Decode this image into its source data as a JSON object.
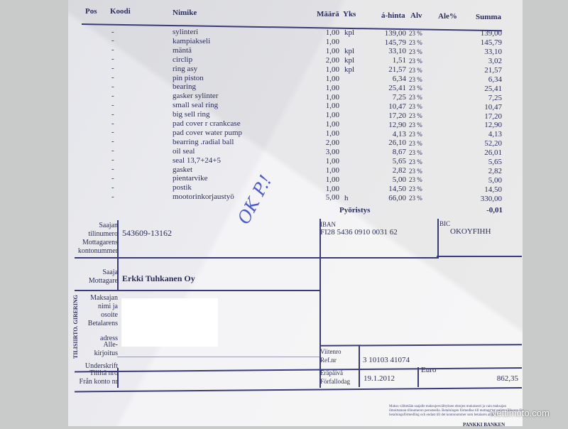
{
  "columns": {
    "pos": "Pos",
    "koodi": "Koodi",
    "nimike": "Nimike",
    "maara": "Määrä",
    "yks": "Yks",
    "ahinta": "á-hinta",
    "alv": "Alv",
    "ale": "Ale%",
    "summa": "Summa"
  },
  "rows": [
    {
      "code": "-",
      "name": "sylinteri",
      "qty": "1,00",
      "unit": "kpl",
      "price": "139,00",
      "vat": "23 %",
      "sum": "139,00"
    },
    {
      "code": "-",
      "name": "kampiakseli",
      "qty": "1,00",
      "unit": "",
      "price": "145,79",
      "vat": "23 %",
      "sum": "145,79"
    },
    {
      "code": "-",
      "name": "mäntä",
      "qty": "1,00",
      "unit": "kpl",
      "price": "33,10",
      "vat": "23 %",
      "sum": "33,10"
    },
    {
      "code": "-",
      "name": "circlip",
      "qty": "2,00",
      "unit": "kpl",
      "price": "1,51",
      "vat": "23 %",
      "sum": "3,02"
    },
    {
      "code": "-",
      "name": "ring asy",
      "qty": "1,00",
      "unit": "kpl",
      "price": "21,57",
      "vat": "23 %",
      "sum": "21,57"
    },
    {
      "code": "-",
      "name": "pin piston",
      "qty": "1,00",
      "unit": "",
      "price": "6,34",
      "vat": "23 %",
      "sum": "6,34"
    },
    {
      "code": "-",
      "name": "bearing",
      "qty": "1,00",
      "unit": "",
      "price": "25,41",
      "vat": "23 %",
      "sum": "25,41"
    },
    {
      "code": "-",
      "name": "gasker sylinter",
      "qty": "1,00",
      "unit": "",
      "price": "7,25",
      "vat": "23 %",
      "sum": "7,25"
    },
    {
      "code": "-",
      "name": "small seal ring",
      "qty": "1,00",
      "unit": "",
      "price": "10,47",
      "vat": "23 %",
      "sum": "10,47"
    },
    {
      "code": "-",
      "name": "big sell ring",
      "qty": "1,00",
      "unit": "",
      "price": "17,20",
      "vat": "23 %",
      "sum": "17,20"
    },
    {
      "code": "-",
      "name": "pad cover r crankcase",
      "qty": "1,00",
      "unit": "",
      "price": "12,90",
      "vat": "23 %",
      "sum": "12,90"
    },
    {
      "code": "-",
      "name": "pad cover water pump",
      "qty": "1,00",
      "unit": "",
      "price": "4,13",
      "vat": "23 %",
      "sum": "4,13"
    },
    {
      "code": "-",
      "name": "bearring .radial ball",
      "qty": "2,00",
      "unit": "",
      "price": "26,10",
      "vat": "23 %",
      "sum": "52,20"
    },
    {
      "code": "-",
      "name": "oil seal",
      "qty": "3,00",
      "unit": "",
      "price": "8,67",
      "vat": "23 %",
      "sum": "26,01"
    },
    {
      "code": "-",
      "name": "seal 13,7+24+5",
      "qty": "1,00",
      "unit": "",
      "price": "5,65",
      "vat": "23 %",
      "sum": "5,65"
    },
    {
      "code": "-",
      "name": "gasket",
      "qty": "1,00",
      "unit": "",
      "price": "2,82",
      "vat": "23 %",
      "sum": "2,82"
    },
    {
      "code": "-",
      "name": "pientarvike",
      "qty": "1,00",
      "unit": "",
      "price": "5,00",
      "vat": "23 %",
      "sum": "5,00"
    },
    {
      "code": "-",
      "name": "postik",
      "qty": "1,00",
      "unit": "",
      "price": "14,50",
      "vat": "23 %",
      "sum": "14,50"
    },
    {
      "code": "-",
      "name": "mootorinkorjaustyö",
      "qty": "5,00",
      "unit": "h",
      "price": "66,00",
      "vat": "23 %",
      "sum": "330,00"
    }
  ],
  "rounding": {
    "label": "Pyöristys",
    "value": "-0,01"
  },
  "handwriting": "OK P.!",
  "giro": {
    "side_label": "TILISIIRTO. GIRERING",
    "account_label": [
      "Saajan",
      "tilinumero",
      "Mottagarens",
      "kontonummer"
    ],
    "account": "543609-13162",
    "iban_label": "IBAN",
    "iban": "FI28 5436 0910 0031 62",
    "bic_label": "BIC",
    "bic": "OKOYFIHH",
    "payee_label": [
      "Saaja",
      "Mottagare"
    ],
    "payee": "Erkki Tuhkanen Oy",
    "payer_label": [
      "Maksajan",
      "nimi ja",
      "osoite",
      "Betalarens",
      "",
      "adress"
    ],
    "signature_label": [
      "Alle-",
      "kirjoitus",
      "Underskrift"
    ],
    "ref_label": [
      "Viitenro",
      "Ref.nr"
    ],
    "ref": "3 10103 41074",
    "due_label": [
      "Eräpäivä",
      "Förfallodag"
    ],
    "due": "19.1.2012",
    "euro_label": "Euro",
    "amount": "862,35",
    "from_label": [
      "Tililtä nro",
      "Från konto nr"
    ],
    "fine_print": "Maksu välitetään saajalle maksujenvälityksen ehtojen mukaisesti ja vain maksajan ilmoittaman tilinumeron perusteella. Betalningen förmedlas till mottagaren enligt villkoren för betalningsförmedling och endast till det kontonummer som betalaren angivit.",
    "bank": "PANKKI BANKEN"
  },
  "watermark": "Nettimoto.com"
}
